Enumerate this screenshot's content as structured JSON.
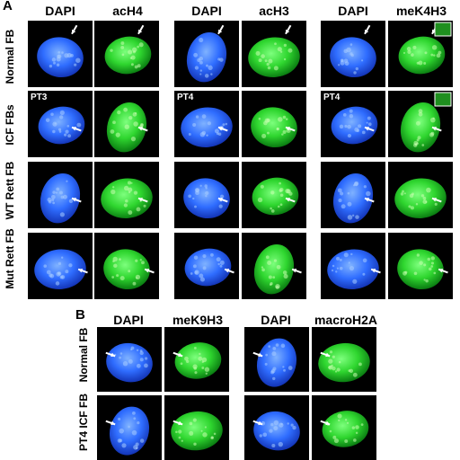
{
  "panel_a": {
    "letter": "A",
    "columns": [
      "DAPI",
      "acH4",
      "DAPI",
      "acH3",
      "DAPI",
      "meK4H3"
    ],
    "rows": [
      "Normal FB",
      "ICF FBs",
      "WT Rett FB",
      "Mut Rett FB"
    ],
    "patient_labels": [
      "PT3",
      "PT4",
      "PT4"
    ]
  },
  "panel_b": {
    "letter": "B",
    "columns": [
      "DAPI",
      "meK9H3",
      "DAPI",
      "macroH2A"
    ],
    "rows": [
      "Normal FB",
      "PT4 ICF FB"
    ]
  },
  "colors": {
    "dapi": "#2f6dff",
    "fitc": "#2fd62f",
    "background": "#000000"
  }
}
